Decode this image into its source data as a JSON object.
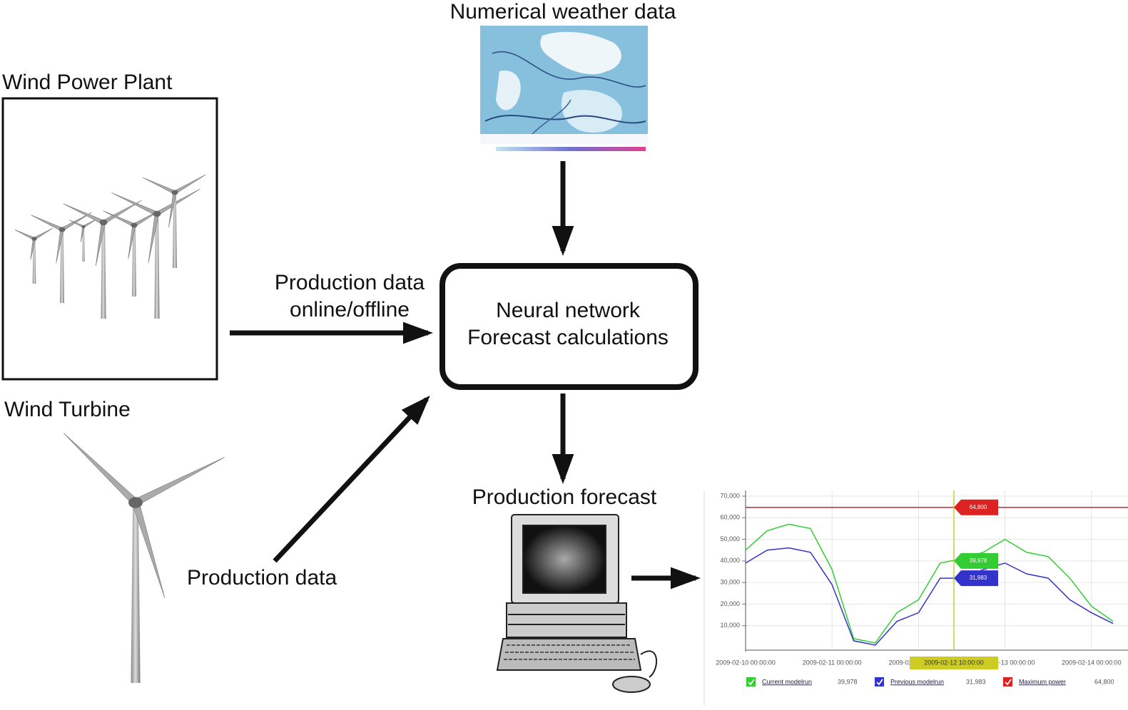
{
  "weather": {
    "title": "Numerical weather data"
  },
  "plant": {
    "title": "Wind Power Plant"
  },
  "turbine": {
    "title": "Wind Turbine"
  },
  "edges": {
    "plant_to_network": [
      "Production data",
      "online/offline"
    ],
    "turbine_to_network": "Production data"
  },
  "neural_network": {
    "lines": [
      "Neural network",
      "Forecast calculations"
    ]
  },
  "forecast": {
    "title": "Production forecast"
  },
  "forecast_chart": {
    "type": "line",
    "categories": [
      "2009-02-10 00:00:00",
      null,
      null,
      null,
      "2009-02-11 00:00:00",
      null,
      null,
      null,
      "2009-02-12 00:00:00",
      null,
      null,
      null,
      "2009-02-13 00:00:00",
      null,
      null,
      null,
      "2009-02-14 00:00:00",
      null
    ],
    "series": [
      {
        "name": "Current modelrun",
        "color": "#33cc33",
        "values": [
          45000,
          54000,
          57000,
          55000,
          36000,
          4000,
          2000,
          16000,
          22000,
          39000,
          41000,
          44000,
          50000,
          44000,
          42000,
          32000,
          19000,
          12000
        ],
        "cursor_value": 39978,
        "cursor_label": "39,978"
      },
      {
        "name": "Previous modelrun",
        "color": "#3333cc",
        "values": [
          39000,
          45000,
          46000,
          44000,
          29000,
          3000,
          1000,
          12000,
          16000,
          32000,
          32000,
          36000,
          39000,
          34000,
          32000,
          22000,
          16000,
          11000
        ],
        "cursor_value": 31983,
        "cursor_label": "31,983"
      }
    ],
    "max_power": {
      "name": "Maximum power",
      "color": "#dd2222",
      "value": 64800,
      "label": "64,800"
    },
    "cursor_label": "2009-02-12 10:00:00",
    "ylim": [
      0,
      70000
    ],
    "yticks": [
      {
        "value": 10000,
        "label": "10,000"
      },
      {
        "value": 20000,
        "label": "20,000"
      },
      {
        "value": 30000,
        "label": "30,000"
      },
      {
        "value": 40000,
        "label": "40,000"
      },
      {
        "value": 50000,
        "label": "50,000"
      },
      {
        "value": 60000,
        "label": "60,000"
      },
      {
        "value": 70000,
        "label": "70,000"
      }
    ],
    "grid": true
  }
}
